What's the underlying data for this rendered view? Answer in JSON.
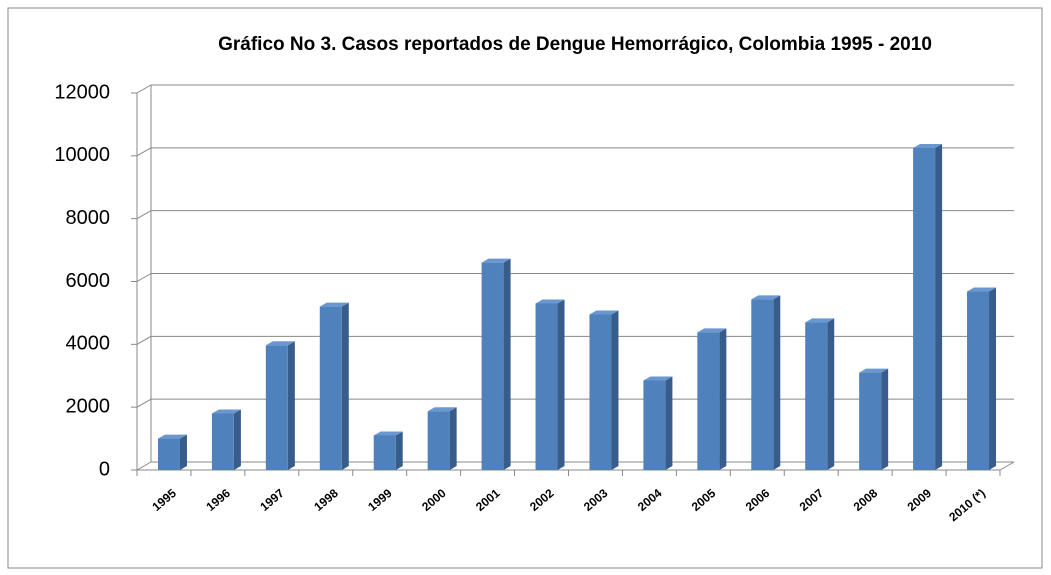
{
  "chart_data": {
    "type": "bar3d",
    "title": "Gráfico No  3. Casos reportados de Dengue Hemorrágico, Colombia 1995 - 2010",
    "categories": [
      "1995",
      "1996",
      "1997",
      "1998",
      "1999",
      "2000",
      "2001",
      "2002",
      "2003",
      "2004",
      "2005",
      "2006",
      "2007",
      "2008",
      "2009",
      "2010 (*)"
    ],
    "values": [
      1000,
      1800,
      3970,
      5200,
      1100,
      1870,
      6600,
      5300,
      4950,
      2850,
      4380,
      5430,
      4700,
      3100,
      10250,
      5680
    ],
    "color": "#4f81bd",
    "ylim": [
      0,
      12000
    ],
    "yticks": [
      0,
      2000,
      4000,
      6000,
      8000,
      10000,
      12000
    ],
    "grid": true
  }
}
